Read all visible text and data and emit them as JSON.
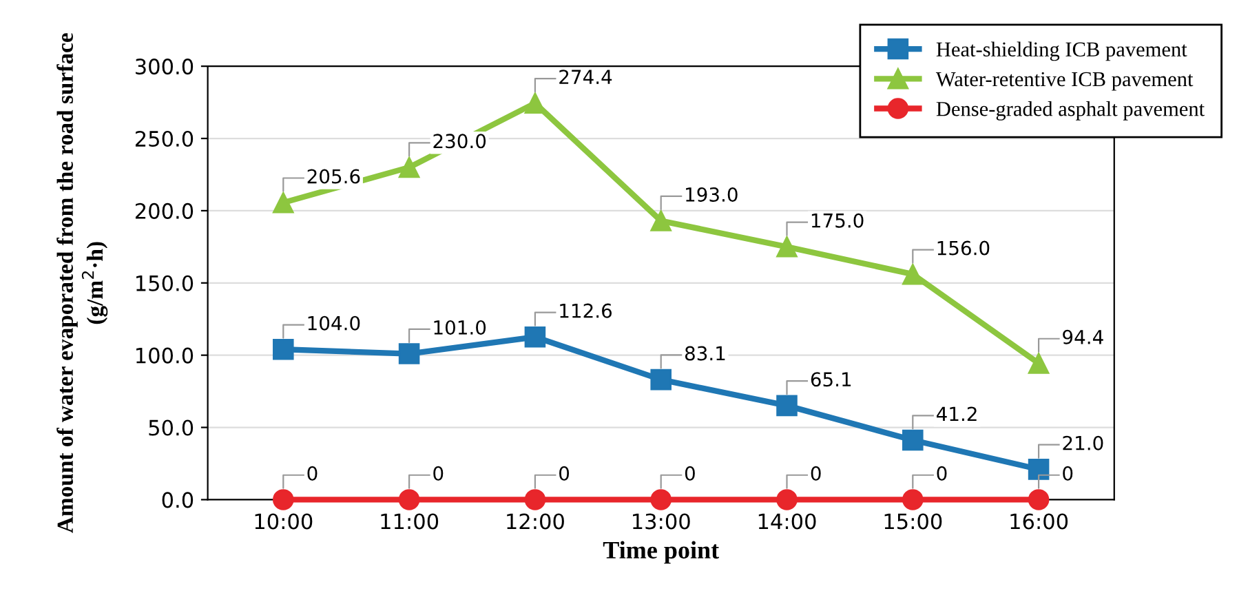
{
  "chart_data": {
    "type": "line",
    "xlabel": "Time point",
    "ylabel": "Amount of water evaporated from the road surface (g/m$^{2}$·h)",
    "categories": [
      "10:00",
      "11:00",
      "12:00",
      "13:00",
      "14:00",
      "15:00",
      "16:00"
    ],
    "series": [
      {
        "name": "Heat-shielding ICB pavement",
        "color": "#1f77b4",
        "marker": "square",
        "values": [
          104.0,
          101.0,
          112.6,
          83.1,
          65.1,
          41.2,
          21.0
        ],
        "value_labels": [
          "104.0",
          "101.0",
          "112.6",
          "83.1",
          "65.1",
          "41.2",
          "21.0"
        ]
      },
      {
        "name": "Water-retentive ICB pavement",
        "color": "#8dc63f",
        "marker": "triangle",
        "values": [
          205.6,
          230.0,
          274.4,
          193.0,
          175.0,
          156.0,
          94.4
        ],
        "value_labels": [
          "205.6",
          "230.0",
          "274.4",
          "193.0",
          "175.0",
          "156.0",
          "94.4"
        ]
      },
      {
        "name": "Dense-graded asphalt pavement",
        "color": "#e8262b",
        "marker": "circle",
        "values": [
          0,
          0,
          0,
          0,
          0,
          0,
          0
        ],
        "value_labels": [
          "0",
          "0",
          "0",
          "0",
          "0",
          "0",
          "0"
        ]
      }
    ],
    "ylim": [
      0,
      300
    ],
    "yticks": [
      {
        "value": 0,
        "label": "0.0"
      },
      {
        "value": 50,
        "label": "50.0"
      },
      {
        "value": 100,
        "label": "100.0"
      },
      {
        "value": 150,
        "label": "150.0"
      },
      {
        "value": 200,
        "label": "200.0"
      },
      {
        "value": 250,
        "label": "250.0"
      },
      {
        "value": 300,
        "label": "300.0"
      }
    ],
    "grid": "y",
    "legend": "top right"
  }
}
